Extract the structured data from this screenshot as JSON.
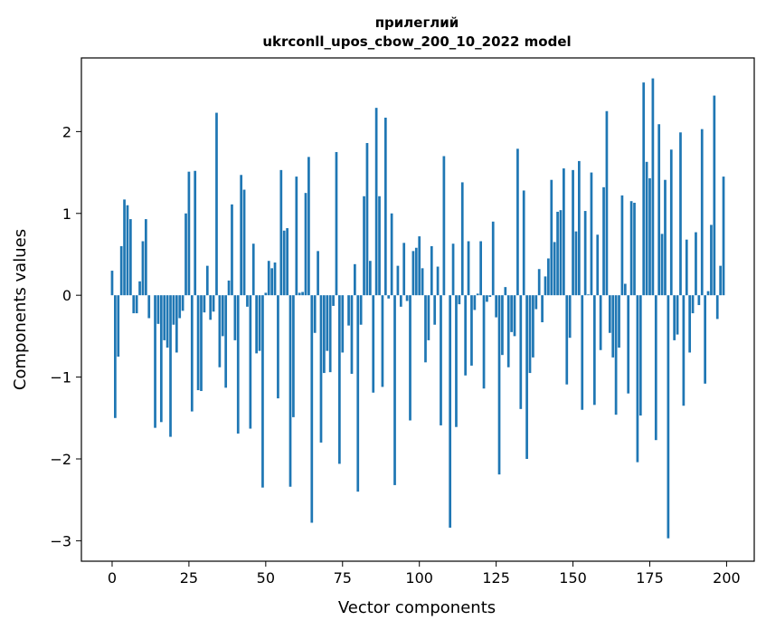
{
  "chart_data": {
    "type": "bar",
    "title_line1": "прилеглий",
    "title_line2": "ukrconll_upos_cbow_200_10_2022 model",
    "xlabel": "Vector components",
    "ylabel": "Components values",
    "xlim": [
      -10,
      209
    ],
    "ylim": [
      -3.25,
      2.9
    ],
    "xticks": [
      0,
      25,
      50,
      75,
      100,
      125,
      150,
      175,
      200
    ],
    "xtick_labels": [
      "0",
      "25",
      "50",
      "75",
      "100",
      "125",
      "150",
      "175",
      "200"
    ],
    "yticks": [
      -3,
      -2,
      -1,
      0,
      1,
      2
    ],
    "ytick_labels": [
      "−3",
      "−2",
      "−1",
      "0",
      "1",
      "2"
    ],
    "grid": false,
    "bar_color": "#1f77b4",
    "x": [
      0,
      1,
      2,
      3,
      4,
      5,
      6,
      7,
      8,
      9,
      10,
      11,
      12,
      13,
      14,
      15,
      16,
      17,
      18,
      19,
      20,
      21,
      22,
      23,
      24,
      25,
      26,
      27,
      28,
      29,
      30,
      31,
      32,
      33,
      34,
      35,
      36,
      37,
      38,
      39,
      40,
      41,
      42,
      43,
      44,
      45,
      46,
      47,
      48,
      49,
      50,
      51,
      52,
      53,
      54,
      55,
      56,
      57,
      58,
      59,
      60,
      61,
      62,
      63,
      64,
      65,
      66,
      67,
      68,
      69,
      70,
      71,
      72,
      73,
      74,
      75,
      76,
      77,
      78,
      79,
      80,
      81,
      82,
      83,
      84,
      85,
      86,
      87,
      88,
      89,
      90,
      91,
      92,
      93,
      94,
      95,
      96,
      97,
      98,
      99,
      100,
      101,
      102,
      103,
      104,
      105,
      106,
      107,
      108,
      109,
      110,
      111,
      112,
      113,
      114,
      115,
      116,
      117,
      118,
      119,
      120,
      121,
      122,
      123,
      124,
      125,
      126,
      127,
      128,
      129,
      130,
      131,
      132,
      133,
      134,
      135,
      136,
      137,
      138,
      139,
      140,
      141,
      142,
      143,
      144,
      145,
      146,
      147,
      148,
      149,
      150,
      151,
      152,
      153,
      154,
      155,
      156,
      157,
      158,
      159,
      160,
      161,
      162,
      163,
      164,
      165,
      166,
      167,
      168,
      169,
      170,
      171,
      172,
      173,
      174,
      175,
      176,
      177,
      178,
      179,
      180,
      181,
      182,
      183,
      184,
      185,
      186,
      187,
      188,
      189,
      190,
      191,
      192,
      193,
      194,
      195,
      196,
      197,
      198,
      199
    ],
    "values": [
      0.3,
      -1.5,
      -0.75,
      0.6,
      1.17,
      1.1,
      0.93,
      -0.22,
      -0.22,
      0.17,
      0.66,
      0.93,
      -0.28,
      0.0,
      -1.62,
      -0.35,
      -1.55,
      -0.55,
      -0.64,
      -1.73,
      -0.36,
      -0.7,
      -0.28,
      -0.19,
      1.0,
      1.51,
      -1.42,
      1.52,
      -1.16,
      -1.17,
      -0.21,
      0.36,
      -0.3,
      -0.2,
      2.23,
      -0.88,
      -0.5,
      -1.13,
      0.18,
      1.11,
      -0.55,
      -1.69,
      1.47,
      1.29,
      -0.14,
      -1.63,
      0.63,
      -0.71,
      -0.68,
      -2.35,
      0.03,
      0.42,
      0.33,
      0.4,
      -1.26,
      1.53,
      0.79,
      0.82,
      -2.34,
      -1.49,
      1.45,
      0.03,
      0.04,
      1.25,
      1.69,
      -2.78,
      -0.46,
      0.54,
      -1.8,
      -0.95,
      -0.68,
      -0.94,
      -0.13,
      1.75,
      -2.06,
      -0.7,
      0.0,
      -0.37,
      -0.96,
      0.38,
      -2.4,
      -0.36,
      1.21,
      1.86,
      0.42,
      -1.19,
      2.29,
      1.21,
      -1.12,
      2.17,
      -0.04,
      1.0,
      -2.32,
      0.36,
      -0.14,
      0.64,
      -0.07,
      -1.53,
      0.54,
      0.58,
      0.72,
      0.33,
      -0.82,
      -0.55,
      0.6,
      -0.36,
      0.35,
      -1.59,
      1.7,
      0.0,
      -2.84,
      0.63,
      -1.61,
      -0.11,
      1.38,
      -0.98,
      0.66,
      -0.86,
      -0.18,
      0.02,
      0.66,
      -1.14,
      -0.08,
      -0.02,
      0.9,
      -0.27,
      -2.19,
      -0.73,
      0.1,
      -0.88,
      -0.45,
      -0.5,
      1.79,
      -1.39,
      1.28,
      -2.0,
      -0.95,
      -0.76,
      -0.17,
      0.32,
      -0.33,
      0.23,
      0.45,
      1.41,
      0.65,
      1.02,
      1.04,
      1.55,
      -1.09,
      -0.52,
      1.53,
      0.78,
      1.64,
      -1.4,
      1.03,
      0.01,
      1.5,
      -1.34,
      0.74,
      -0.67,
      1.32,
      2.25,
      -0.46,
      -0.76,
      -1.46,
      -0.64,
      1.22,
      0.14,
      -1.2,
      1.15,
      1.13,
      -2.04,
      -1.47,
      2.6,
      1.63,
      1.43,
      2.65,
      -1.77,
      2.09,
      0.75,
      1.41,
      -2.97,
      1.78,
      -0.55,
      -0.48,
      1.99,
      -1.35,
      0.68,
      -0.7,
      -0.22,
      0.77,
      -0.12,
      2.03,
      -1.08,
      0.05,
      0.86,
      2.44,
      -0.29,
      0.36,
      1.45
    ]
  }
}
